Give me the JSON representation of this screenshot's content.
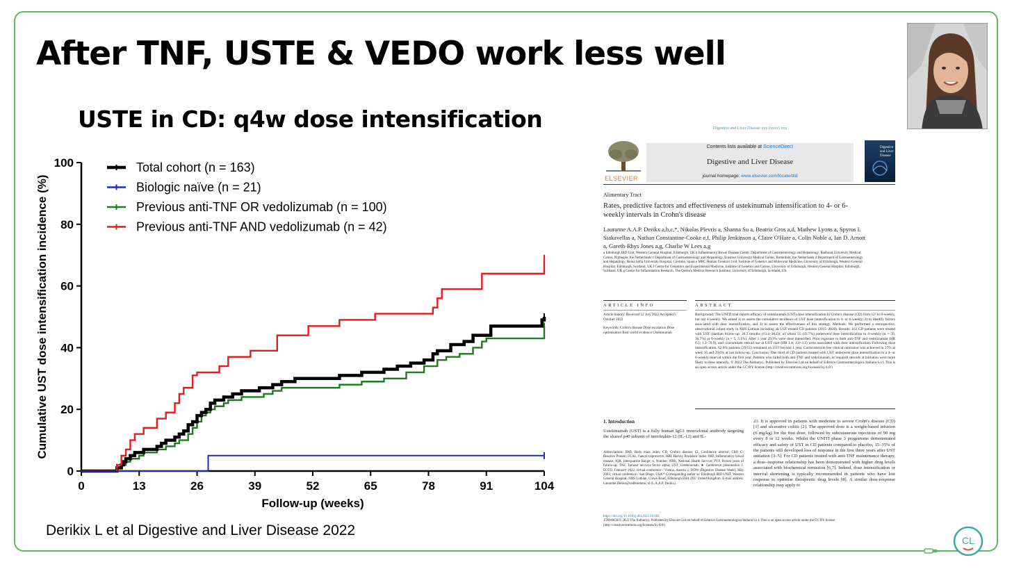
{
  "slide": {
    "title": "After TNF, USTE & VEDO work less well",
    "subtitle": "USTE in CD: q4w dose intensification",
    "citation": "Derikix L et al Digestive and Liver Disease 2022",
    "logo_text": "CL",
    "colors": {
      "frame": "#5cb85c",
      "logo_teal": "#3aa99f",
      "logo_red": "#e04b3a"
    }
  },
  "chart_data": {
    "type": "line",
    "xlabel": "Follow-up (weeks)",
    "ylabel": "Cumulative UST dose intensification incidence (%)",
    "xticks": [
      "0",
      "13",
      "26",
      "39",
      "52",
      "65",
      "78",
      "91",
      "104"
    ],
    "yticks": [
      "0",
      "20",
      "40",
      "60",
      "80",
      "100"
    ],
    "xlim": [
      0,
      104
    ],
    "ylim": [
      0,
      100
    ],
    "legend_position": "top-left",
    "grid": false,
    "series": [
      {
        "name": "Total cohort (n = 163)",
        "color": "#000000",
        "points": [
          [
            0,
            0
          ],
          [
            7.5,
            0
          ],
          [
            8,
            1
          ],
          [
            9,
            2
          ],
          [
            9.5,
            3
          ],
          [
            10,
            4
          ],
          [
            11,
            5
          ],
          [
            12,
            6
          ],
          [
            13,
            6
          ],
          [
            14,
            7
          ],
          [
            16,
            7
          ],
          [
            17,
            8
          ],
          [
            18,
            9
          ],
          [
            19,
            10
          ],
          [
            21,
            11
          ],
          [
            22,
            12
          ],
          [
            23,
            13
          ],
          [
            24,
            15
          ],
          [
            25,
            16
          ],
          [
            26,
            18
          ],
          [
            27,
            19
          ],
          [
            28,
            20
          ],
          [
            29,
            22
          ],
          [
            30,
            23
          ],
          [
            32,
            24
          ],
          [
            34,
            25
          ],
          [
            36,
            26
          ],
          [
            38,
            26
          ],
          [
            40,
            27
          ],
          [
            43,
            28
          ],
          [
            45,
            29
          ],
          [
            48,
            30
          ],
          [
            58,
            31
          ],
          [
            63,
            32
          ],
          [
            68,
            33
          ],
          [
            71,
            34
          ],
          [
            74,
            35
          ],
          [
            77,
            36
          ],
          [
            79,
            38
          ],
          [
            80,
            39
          ],
          [
            83,
            41
          ],
          [
            86,
            42
          ],
          [
            88,
            44
          ],
          [
            92,
            47
          ],
          [
            103,
            47
          ],
          [
            103.5,
            49
          ],
          [
            104,
            50
          ]
        ]
      },
      {
        "name": "Biologic naïve (n = 21)",
        "color": "#1f2fa8",
        "points": [
          [
            0,
            0
          ],
          [
            28,
            0
          ],
          [
            28.5,
            5
          ],
          [
            104,
            5
          ]
        ]
      },
      {
        "name": "Previous anti-TNF OR vedolizumab (n = 100)",
        "color": "#1d7a1d",
        "points": [
          [
            0,
            0
          ],
          [
            7.5,
            0
          ],
          [
            8,
            1
          ],
          [
            9,
            2
          ],
          [
            10,
            3
          ],
          [
            11,
            4
          ],
          [
            13,
            5
          ],
          [
            14,
            6
          ],
          [
            16,
            6
          ],
          [
            17,
            7
          ],
          [
            19,
            8
          ],
          [
            21,
            9
          ],
          [
            22,
            10
          ],
          [
            24,
            12
          ],
          [
            25,
            14
          ],
          [
            26,
            16
          ],
          [
            27,
            18
          ],
          [
            28,
            19
          ],
          [
            29,
            20
          ],
          [
            30,
            21
          ],
          [
            32,
            22
          ],
          [
            33,
            23
          ],
          [
            36,
            24
          ],
          [
            41,
            25
          ],
          [
            43,
            26
          ],
          [
            45,
            27
          ],
          [
            48,
            27
          ],
          [
            58,
            28
          ],
          [
            63,
            29
          ],
          [
            68,
            30
          ],
          [
            73,
            32
          ],
          [
            77,
            34
          ],
          [
            80,
            36
          ],
          [
            82,
            37
          ],
          [
            85,
            38
          ],
          [
            88,
            40
          ],
          [
            90,
            42
          ],
          [
            91,
            43
          ],
          [
            103,
            43
          ],
          [
            104,
            47
          ]
        ]
      },
      {
        "name": "Previous anti-TNF AND vedolizumab (n = 42)",
        "color": "#e8191a",
        "points": [
          [
            0,
            0
          ],
          [
            7.5,
            0
          ],
          [
            8,
            2
          ],
          [
            9,
            5
          ],
          [
            10,
            7
          ],
          [
            11,
            10
          ],
          [
            12,
            12
          ],
          [
            14,
            14
          ],
          [
            17,
            17
          ],
          [
            19,
            19
          ],
          [
            21,
            22
          ],
          [
            22,
            25
          ],
          [
            23,
            27
          ],
          [
            25,
            31
          ],
          [
            26,
            32
          ],
          [
            31,
            34
          ],
          [
            33,
            37
          ],
          [
            38,
            39
          ],
          [
            44,
            44
          ],
          [
            51,
            47
          ],
          [
            58,
            49
          ],
          [
            66,
            51
          ],
          [
            79,
            53
          ],
          [
            80,
            56
          ],
          [
            81,
            59
          ],
          [
            90,
            64
          ],
          [
            103,
            64
          ],
          [
            104,
            69
          ]
        ]
      }
    ]
  },
  "paper": {
    "journal_ref": "Digestive and Liver Disease xxx (xxxx) xxx",
    "contents_prefix": "Contents lists available at ",
    "contents_link": "ScienceDirect",
    "journal_name": "Digestive and Liver Disease",
    "homepage_prefix": "journal homepage: ",
    "homepage_url": "www.elsevier.com/locate/dld",
    "publisher": "ELSEVIER",
    "cover_title": "Digestive and Liver Disease",
    "section": "Alimentary Tract",
    "title": "Rates, predictive factors and effectiveness of ustekinumab intensification to 4- or 6-weekly intervals in Crohn's disease",
    "authors": "Lauranne A.A.P. Derikx a,b,c,*, Nikolas Plevris a, Shanna Su a, Beatriz Gros a,d, Mathew Lyons a, Spyros I. Siakavellas a, Nathan Constantine-Cooke e,f, Philip Jenkinson a, Claire O'Hare a, Colin Noble a, Ian D. Arnott a, Gareth-Rhys Jones a,g, Charlie W Lees a,g",
    "affiliations": "a Edinburgh IBD Unit, Western General Hospital, Edinburgh, UK  b Inflammatory Bowel Disease Center, Department of Gastroenterology and Hepatology, Radboud University Medical Center, Nijmegen, the Netherlands  c Department of Gastroenterology and Hepatology, Erasmus University Medical Center, Rotterdam, the Netherlands  d Department of Gastroenterology and Hepatology, Reina Sofía University Hospital, Córdoba, Spain  e MRC Human Genetics Unit, Institute of Genetics and Molecular Medicine, University of Edinburgh, Western General Hospital, Edinburgh, Scotland, UK  f Centre for Genomics and Experimental Medicine, Institute of Genetics and Cancer, University of Edinburgh, Western General Hospital, Edinburgh, Scotland, UK  g Centre for Inflammation Research, The Queen's Medical Research Institute, University of Edinburgh, Scotland, UK",
    "article_info_heading": "ARTICLE INFO",
    "abstract_heading": "ABSTRACT",
    "history": "Article history: Received 12 July 2022 Accepted 5 October 2022",
    "keywords": "Keywords: Crohn's disease Dose escalation Dose optimisation Real world evidence Ustekinumab",
    "abstract": "Background: The UNITI trial reports efficacy of ustekinumab (UST) dose intensification in Crohn's disease (CD) from 12- to 8-weekly, but not 4-weekly. We aimed 1) to assess the cumulative incidence of UST dose intensification to 4- or 6-weekly, 2) to identify factors associated with dose intensification, and 3) to assess the effectiveness of this strategy. Methods: We performed a retrospective, observational cohort study in NHS Lothian including all UST treated CD patients (2015–2020). Results: 163 CD patients were treated with UST (median follow-up: 20.3 months (13.4–38.4)), of whom 55 (33.7%) underwent dose intensification to 4-weekly (n = 50, 30.7%) or 6-weekly (n = 5, 3.1%). After 1 year 29.9% were dose intensified. Prior exposure to both anti-TNF and vedolizumab (HR 6.5; 1.3–70.9), and concomitant steroid use at UST start (HR 1.8; 1.0–3.1) were associated with dose intensification. Following dose intensification, 62.6% patients (29/55) remained on UST beyond 1 year. Corticosteroid-free clinical remission was achieved in 27% at week 16 and 29.6% at last follow-up. Conclusion: One third of CD patients treated with UST underwent dose intensification to a 4- or 6-weekly interval within the first year. Patients who failed both anti-TNF and vedolizumab, or required steroids at initiation were more likely to dose intensify. © 2022 The Author(s). Published by Elsevier Ltd on behalf of Editrice Gastroenterologica Italiana S.r.l. This is an open access article under the CC BY license (http://creativecommons.org/licenses/by/4.0/)",
    "intro_heading": "1. Introduction",
    "intro_left": "Ustekinumab (UST) is a fully human IgG1 monoclonal antibody targeting the shared p40 subunit of interleukin-12 (IL-12) and IL-",
    "abbreviations": "Abbreviations: BMI, Body mass index; CD, Crohn's disease; CI, Confidence interval; CRP, C-Reactive Protein; FCAL, Faecal calprotectin; HBI, Harvey Bradshaw Index; IBD, Inflammatory bowel disease; IQR, Interquartile Range; n, Number; NHS, National Health Service; PYF, Person years of follow-up; TNF, Tumour necrosis factor alpha; UST, Ustekinumab. ★ Conference presentation 1. ECCO, February 2022, virtual conference / Vienna, Austria 2. DDW (Digestive Disease Week), May 2022, virtual conference / San Diego, USA * Corresponding author at: Edinburgh IBD UNIT, Western General Hospital, NHS Lothian, Crewe Road, Edinburgh EH4 2XU United Kingdom. E-mail address: Lauranne.Derikx@radboudumc.nl (L.A.A.P. Derikx).",
    "intro_right": "23. It is approved in patients with moderate to severe Crohn's disease (CD) [1] and ulcerative colitis [2]. The approved dose is a weight-based infusion (6 mg/kg) for the first dose, followed by subcutaneous injections of 90 mg every 8 or 12 weeks. Whilst the UNITI phase 3 programme demonstrated efficacy and safety of UST in CD patients compared to placebo, 15–35% of the patients still developed loss of response in the first three years after UST initiation [3–5]. For CD patients treated with anti-TNF maintenance therapy, a dose–response relationship has been demonstrated with higher drug levels associated with biochemical remission [6,7]. Indeed, dose intensification or interval shortening is typically recommended in patients who have lost response to optimise therapeutic drug levels [8]. A similar dose-response relationship may apply to",
    "doi_line": "https://doi.org/10.1016/j.dld.2022.10.002",
    "license_line": "1590-8658/© 2022 The Author(s). Published by Elsevier Ltd on behalf of Editrice Gastroenterologica Italiana S.r.l. This is an open access article under the CC BY license (http://creativecommons.org/licenses/by/4.0/)"
  }
}
